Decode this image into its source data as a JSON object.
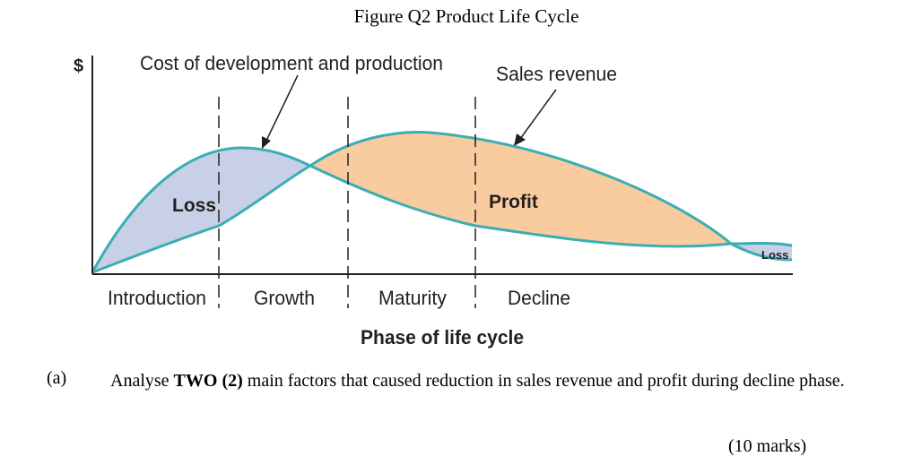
{
  "figure": {
    "title": "Figure Q2 Product Life Cycle",
    "y_axis_label": "$",
    "x_axis_title": "Phase of life cycle",
    "phases": [
      "Introduction",
      "Growth",
      "Maturity",
      "Decline"
    ],
    "curve_labels": {
      "cost": "Cost of development and production",
      "revenue": "Sales revenue"
    },
    "region_labels": {
      "loss_early": "Loss",
      "profit": "Profit",
      "loss_late": "Loss"
    },
    "colors": {
      "curve": "#3aaeb4",
      "loss_fill": "#c7d0e6",
      "profit_fill": "#f9cc9f",
      "axis": "#231f20"
    }
  },
  "question": {
    "label": "(a)",
    "text_before": "Analyse ",
    "text_bold": "TWO (2)",
    "text_after": " main factors that caused reduction in sales revenue and profit during decline phase.",
    "marks": "(10 marks)"
  }
}
